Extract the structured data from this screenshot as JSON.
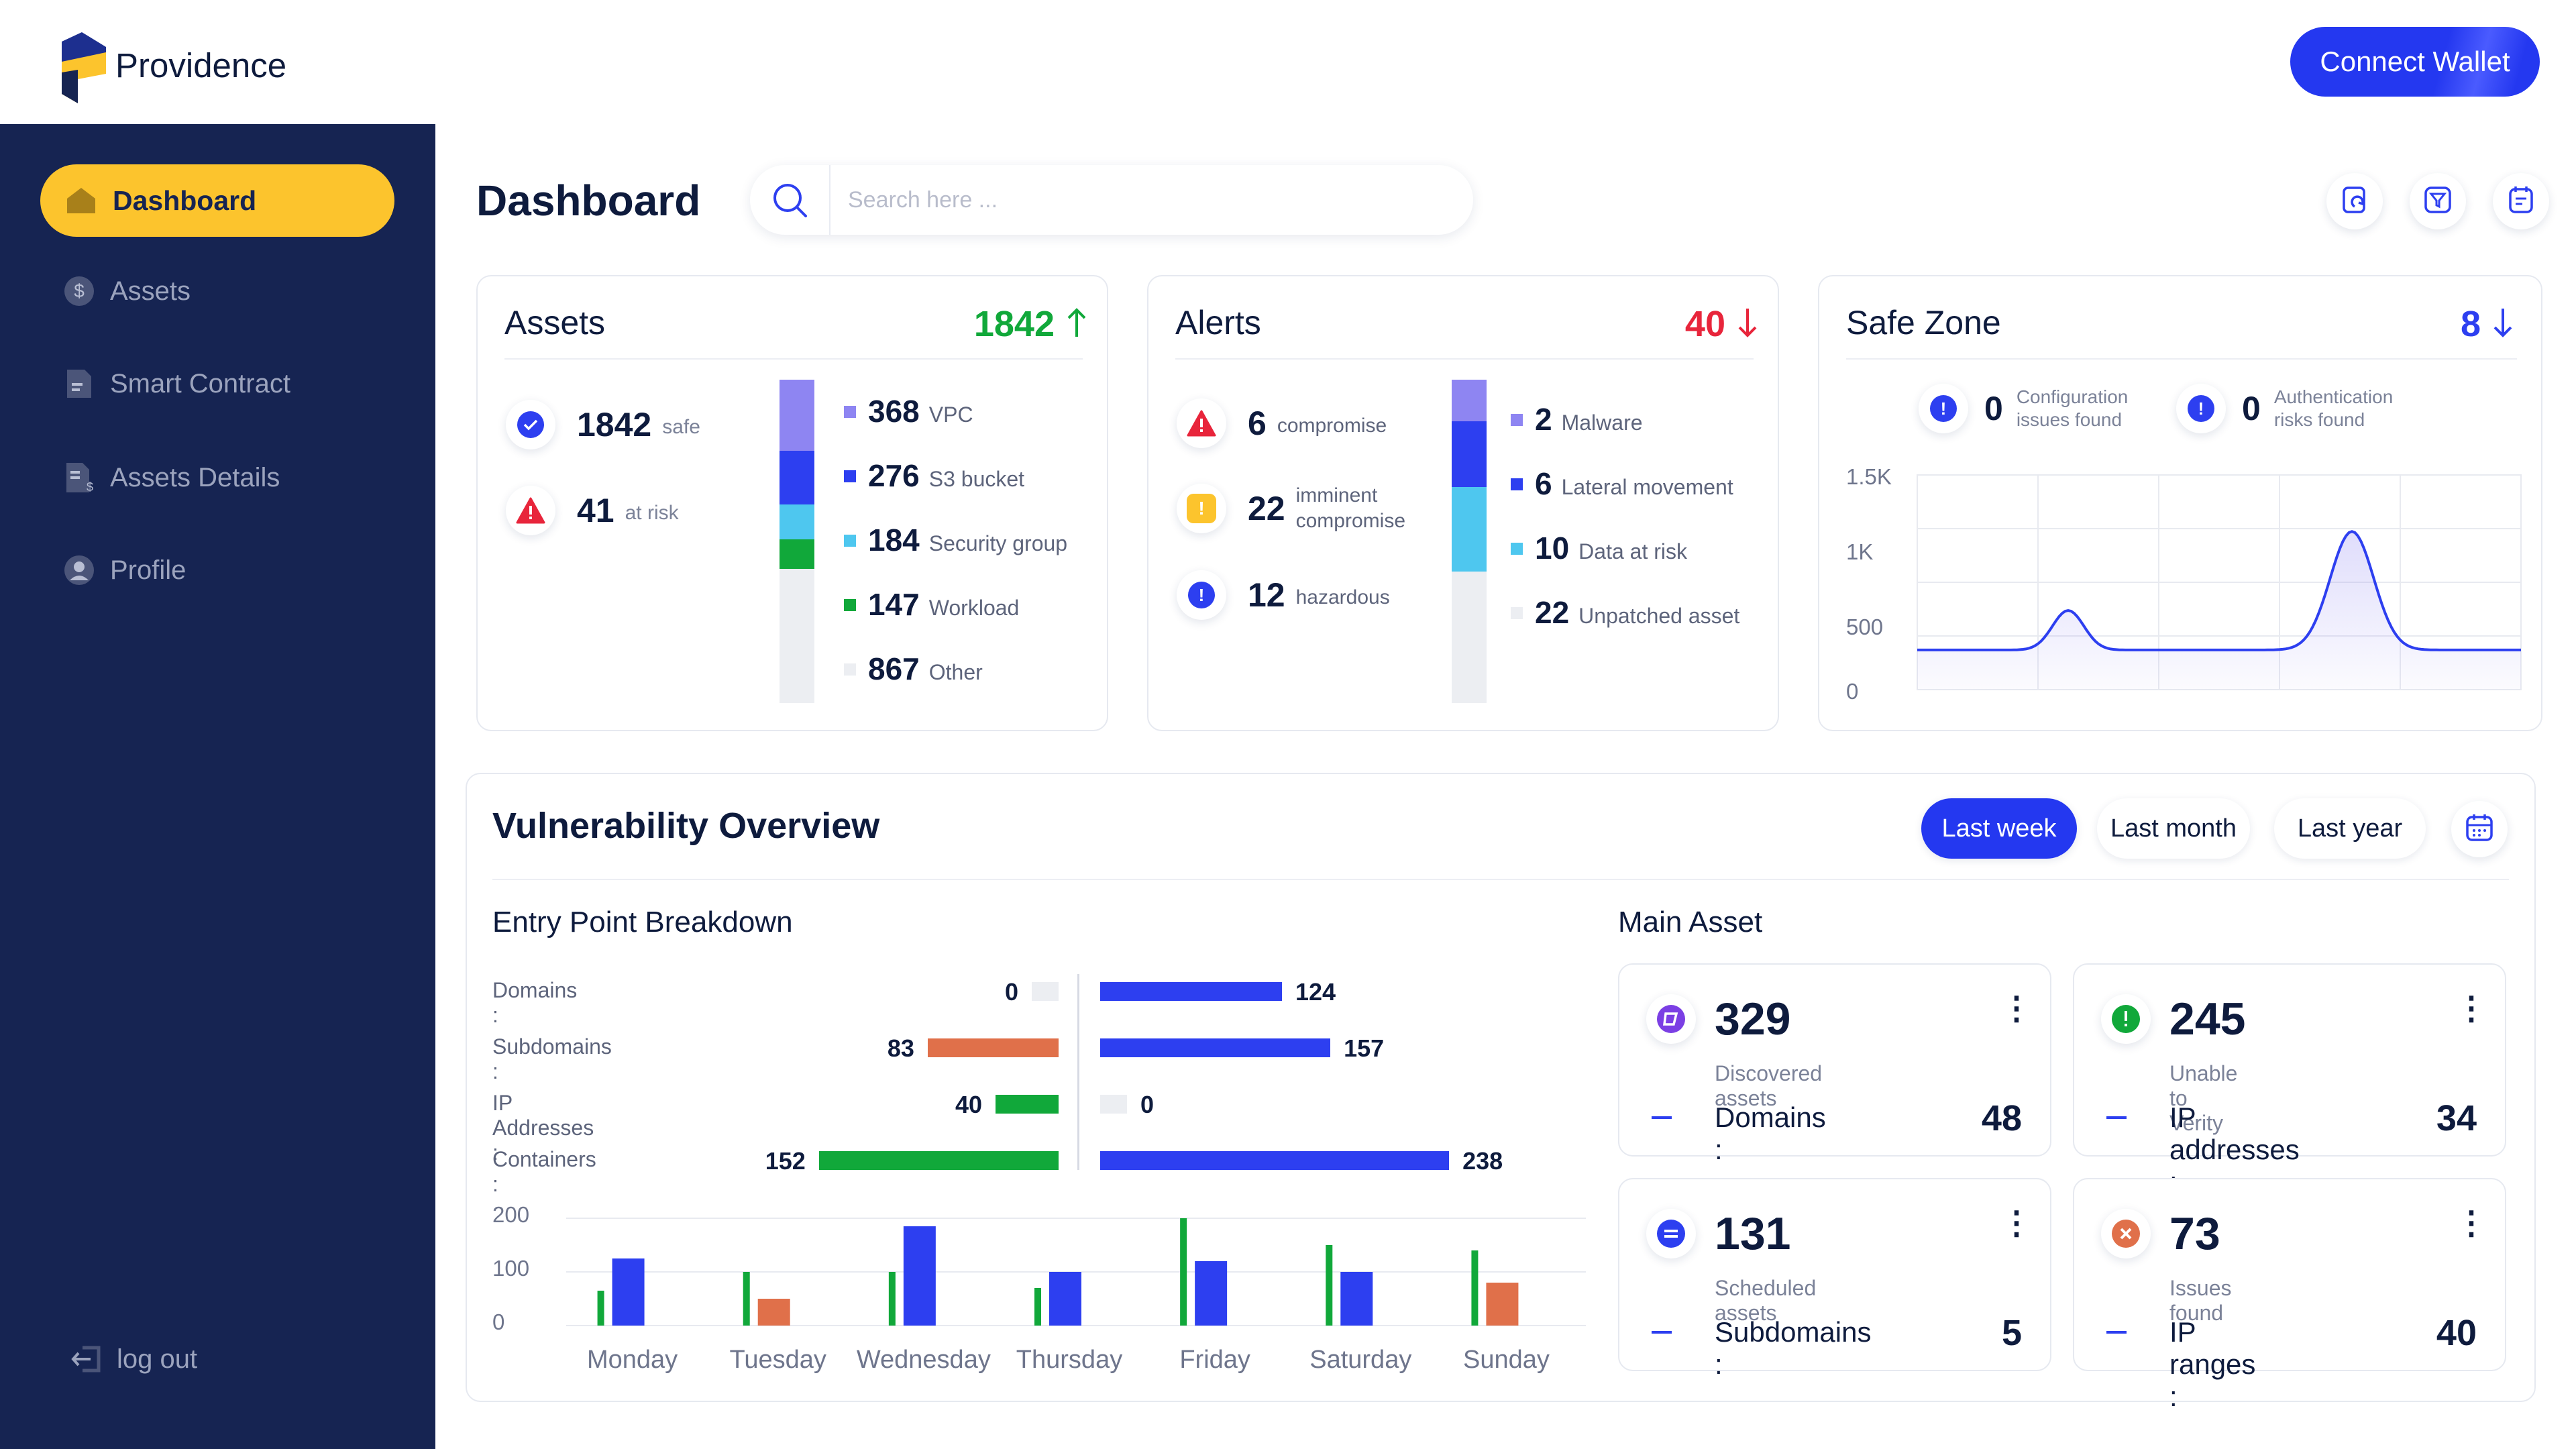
{
  "brand": {
    "name": "Providence"
  },
  "header": {
    "connect_label": "Connect Wallet"
  },
  "sidebar": {
    "items": [
      {
        "label": "Dashboard",
        "icon": "home-icon"
      },
      {
        "label": "Assets",
        "icon": "dollar-icon"
      },
      {
        "label": "Smart Contract",
        "icon": "document-icon"
      },
      {
        "label": "Assets Details",
        "icon": "asset-document-icon"
      },
      {
        "label": "Profile",
        "icon": "user-icon"
      }
    ],
    "logout_label": "log out"
  },
  "page": {
    "title": "Dashboard"
  },
  "search": {
    "placeholder": "Search here ..."
  },
  "assets_card": {
    "title": "Assets",
    "total": "1842",
    "safe_value": "1842",
    "safe_label": "safe",
    "risk_value": "41",
    "risk_label": "at risk",
    "legend": [
      {
        "value": "368",
        "label": "VPC",
        "color": "#8e85f2"
      },
      {
        "value": "276",
        "label": "S3 bucket",
        "color": "#2d3ff0"
      },
      {
        "value": "184",
        "label": "Security group",
        "color": "#4ec7ef"
      },
      {
        "value": "147",
        "label": "Workload",
        "color": "#11a83a"
      },
      {
        "value": "867",
        "label": "Other",
        "color": "#eceef2"
      }
    ]
  },
  "alerts_card": {
    "title": "Alerts",
    "total": "40",
    "rows": [
      {
        "value": "6",
        "label": "compromise"
      },
      {
        "value": "22",
        "label_line1": "imminent",
        "label_line2": "compromise"
      },
      {
        "value": "12",
        "label": "hazardous"
      }
    ],
    "legend": [
      {
        "value": "2",
        "label": "Malware",
        "color": "#8e85f2"
      },
      {
        "value": "6",
        "label": "Lateral movement",
        "color": "#2d3ff0"
      },
      {
        "value": "10",
        "label": "Data at risk",
        "color": "#4ec7ef"
      },
      {
        "value": "22",
        "label": "Unpatched asset",
        "color": "#eceef2"
      }
    ]
  },
  "safezone_card": {
    "title": "Safe Zone",
    "total": "8",
    "config_value": "0",
    "config_line1": "Configuration",
    "config_line2": "issues found",
    "auth_value": "0",
    "auth_line1": "Authentication",
    "auth_line2": "risks found",
    "yticks": [
      "1.5K",
      "1K",
      "500",
      "0"
    ]
  },
  "vuln": {
    "title": "Vulnerability Overview",
    "filters": [
      "Last week",
      "Last month",
      "Last year"
    ],
    "entry_title": "Entry Point Breakdown",
    "main_title": "Main Asset",
    "breakdown": [
      {
        "label": "Domains :",
        "left": 0,
        "right": 124
      },
      {
        "label": "Subdomains :",
        "left": 83,
        "right": 157
      },
      {
        "label": "IP Addresses :",
        "left": 40,
        "right": 0
      },
      {
        "label": "Containers :",
        "left": 152,
        "right": 238
      }
    ]
  },
  "chart_data": [
    {
      "type": "bar",
      "title": "Entry Point Breakdown",
      "categories": [
        "Domains :",
        "Subdomains :",
        "IP Addresses :",
        "Containers :"
      ],
      "series": [
        {
          "name": "left",
          "values": [
            0,
            83,
            40,
            152
          ]
        },
        {
          "name": "right",
          "values": [
            124,
            157,
            0,
            238
          ]
        }
      ]
    },
    {
      "type": "bar",
      "categories": [
        "Monday",
        "Tuesday",
        "Wednesday",
        "Thursday",
        "Friday",
        "Saturday",
        "Sunday"
      ],
      "yticks": [
        "200",
        "100",
        "0"
      ],
      "ylim": [
        0,
        200
      ],
      "series": [
        {
          "name": "green",
          "color": "#11a83a",
          "values": [
            65,
            100,
            100,
            70,
            200,
            150,
            140
          ]
        },
        {
          "name": "main",
          "colors": [
            "#2d3ff0",
            "#e0704a",
            "#2d3ff0",
            "#2d3ff0",
            "#2d3ff0",
            "#2d3ff0",
            "#e0704a"
          ],
          "values": [
            125,
            50,
            185,
            100,
            120,
            100,
            80
          ]
        }
      ]
    },
    {
      "type": "line",
      "title": "Safe Zone",
      "ylim": [
        0,
        1500
      ],
      "yticks": [
        "1.5K",
        "1K",
        "500",
        "0"
      ],
      "x": [
        0,
        20,
        30,
        40,
        60,
        65,
        70,
        80,
        90,
        100
      ],
      "y": [
        250,
        250,
        550,
        250,
        250,
        350,
        1150,
        250,
        250,
        250
      ]
    }
  ],
  "main_asset": [
    {
      "value": "329",
      "sub": "Discovered assets",
      "label": "Domains :",
      "count": "48",
      "icon": "discovered-icon",
      "color": "#7b3fe4"
    },
    {
      "value": "245",
      "sub": "Unable to Verity",
      "label": "IP addresses :",
      "count": "34",
      "icon": "alert-circle-icon",
      "color": "#11a83a"
    },
    {
      "value": "131",
      "sub": "Scheduled assets",
      "label": "Subdomains :",
      "count": "5",
      "icon": "minus-circle-icon",
      "color": "#2d3ff0"
    },
    {
      "value": "73",
      "sub": "Issues found",
      "label": "IP ranges :",
      "count": "40",
      "icon": "x-circle-icon",
      "color": "#e0704a"
    }
  ]
}
